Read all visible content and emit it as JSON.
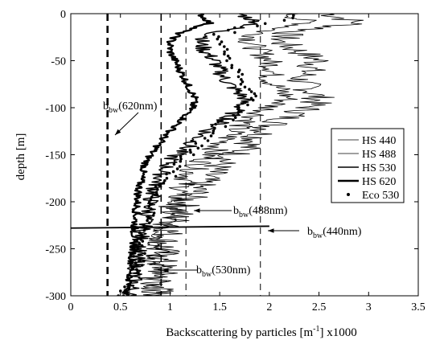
{
  "chart_data": {
    "type": "line",
    "xlabel_main": "Backscattering by particles [m",
    "xlabel_sup": "-1",
    "xlabel_tail": "] x1000",
    "ylabel": "depth [m]",
    "xlim": [
      0,
      3.5
    ],
    "ylim": [
      -300,
      0
    ],
    "xticks": [
      "0",
      "0.5",
      "1",
      "1.5",
      "2",
      "2.5",
      "3",
      "3.5"
    ],
    "xtick_values": [
      0,
      0.5,
      1,
      1.5,
      2,
      2.5,
      3,
      3.5
    ],
    "yticks": [
      "0",
      "-50",
      "-100",
      "-150",
      "-200",
      "-250",
      "-300"
    ],
    "ytick_values": [
      0,
      -50,
      -100,
      -150,
      -200,
      -250,
      -300
    ],
    "legend_position": "right",
    "legend": [
      {
        "label": "HS 440",
        "style": "thin"
      },
      {
        "label": "HS 488",
        "style": "thin"
      },
      {
        "label": "HS 530",
        "style": "medium"
      },
      {
        "label": "HS 620",
        "style": "thick"
      },
      {
        "label": "Eco 530",
        "style": "dot"
      }
    ],
    "reference_lines": [
      {
        "name": "bbw_620",
        "x": 0.37,
        "dash": "9,6",
        "width": 2.6
      },
      {
        "name": "bbw_530",
        "x": 0.91,
        "dash": "9,6",
        "width": 1.6
      },
      {
        "name": "bbw_488",
        "x": 1.16,
        "dash": "8,6",
        "width": 1.0
      },
      {
        "name": "bbw_440",
        "x": 1.91,
        "dash": "8,6",
        "width": 1.0
      }
    ],
    "annotations": [
      {
        "main": "b",
        "sub": "bw",
        "rest": "(620nm)"
      },
      {
        "main": "b",
        "sub": "bw",
        "rest": "(488nm)"
      },
      {
        "main": "b",
        "sub": "bw",
        "rest": "(440nm)"
      },
      {
        "main": "b",
        "sub": "bw",
        "rest": "(530nm)"
      }
    ],
    "series": [
      {
        "name": "HS 440",
        "depth": [
          0,
          -10,
          -20,
          -30,
          -40,
          -50,
          -60,
          -70,
          -80,
          -90,
          -100,
          -110,
          -120,
          -130,
          -140,
          -150,
          -160,
          -170,
          -180,
          -190,
          -200,
          -210,
          -220,
          -230,
          -240,
          -250,
          -260,
          -270,
          -280,
          -290,
          -300
        ],
        "values": [
          2.6,
          2.9,
          2.2,
          2.1,
          2.3,
          2.5,
          2.4,
          2.3,
          2.4,
          2.5,
          2.4,
          2.2,
          2.0,
          1.9,
          1.8,
          1.65,
          1.5,
          1.4,
          1.3,
          1.25,
          1.15,
          1.1,
          1.05,
          1.0,
          0.95,
          0.95,
          0.9,
          0.92,
          0.9,
          0.88,
          0.88
        ]
      },
      {
        "name": "HS 488",
        "depth": [
          0,
          -10,
          -20,
          -30,
          -40,
          -50,
          -60,
          -70,
          -80,
          -90,
          -100,
          -110,
          -120,
          -130,
          -140,
          -150,
          -160,
          -170,
          -180,
          -190,
          -200,
          -210,
          -220,
          -230,
          -240,
          -250,
          -260,
          -270,
          -280,
          -290,
          -300
        ],
        "values": [
          2.2,
          2.4,
          1.9,
          1.8,
          1.9,
          2.0,
          2.05,
          2.0,
          2.1,
          2.2,
          2.0,
          1.85,
          1.7,
          1.6,
          1.5,
          1.4,
          1.3,
          1.2,
          1.15,
          1.1,
          1.05,
          1.0,
          0.97,
          0.93,
          0.9,
          0.88,
          0.85,
          0.86,
          0.84,
          0.82,
          0.82
        ]
      },
      {
        "name": "HS 530",
        "depth": [
          0,
          -10,
          -20,
          -30,
          -40,
          -50,
          -60,
          -70,
          -80,
          -90,
          -100,
          -110,
          -120,
          -130,
          -140,
          -150,
          -160,
          -170,
          -180,
          -190,
          -200,
          -210,
          -220,
          -230,
          -240,
          -250,
          -260,
          -270,
          -280,
          -290,
          -300
        ],
        "values": [
          1.7,
          1.9,
          1.45,
          1.3,
          1.35,
          1.45,
          1.5,
          1.55,
          1.65,
          1.75,
          1.7,
          1.6,
          1.45,
          1.3,
          1.2,
          1.05,
          0.98,
          0.92,
          0.87,
          0.83,
          0.8,
          0.78,
          0.75,
          0.72,
          0.7,
          0.68,
          0.66,
          0.66,
          0.64,
          0.62,
          0.6
        ]
      },
      {
        "name": "HS 620",
        "depth": [
          0,
          -10,
          -20,
          -30,
          -40,
          -50,
          -60,
          -70,
          -80,
          -90,
          -100,
          -110,
          -120,
          -130,
          -140,
          -150,
          -160,
          -170,
          -180,
          -190,
          -200,
          -210,
          -220,
          -230,
          -240,
          -250,
          -260,
          -270,
          -280,
          -290,
          -300
        ],
        "values": [
          1.3,
          1.4,
          1.1,
          1.0,
          1.0,
          1.05,
          1.1,
          1.15,
          1.2,
          1.25,
          1.22,
          1.15,
          1.05,
          0.95,
          0.88,
          0.8,
          0.75,
          0.72,
          0.7,
          0.68,
          0.67,
          0.66,
          0.65,
          0.64,
          0.64,
          0.63,
          0.62,
          0.62,
          0.6,
          0.58,
          0.56
        ]
      },
      {
        "name": "Eco 530",
        "depth": [
          -2,
          -8,
          -15,
          -22,
          -30,
          -38,
          -45,
          -55,
          -62,
          -70,
          -78,
          -85,
          -92,
          -100,
          -108,
          -115,
          -122,
          -130,
          -138,
          -145,
          -152,
          -160,
          -168,
          -175,
          -182,
          -190,
          -198,
          -205,
          -212,
          -220,
          -228,
          -235,
          -242,
          -250,
          -258,
          -265,
          -272,
          -280,
          -288,
          -295,
          -300
        ],
        "values": [
          2.2,
          1.9,
          1.6,
          1.5,
          1.5,
          1.6,
          1.6,
          1.65,
          1.7,
          1.75,
          1.8,
          1.85,
          1.8,
          1.7,
          1.6,
          1.5,
          1.45,
          1.4,
          1.3,
          1.2,
          1.15,
          1.05,
          1.0,
          0.95,
          0.9,
          0.86,
          0.82,
          0.8,
          0.78,
          0.76,
          0.74,
          0.72,
          0.72,
          0.7,
          0.68,
          0.66,
          0.64,
          0.6,
          0.58,
          0.55,
          0.52
        ]
      }
    ]
  }
}
